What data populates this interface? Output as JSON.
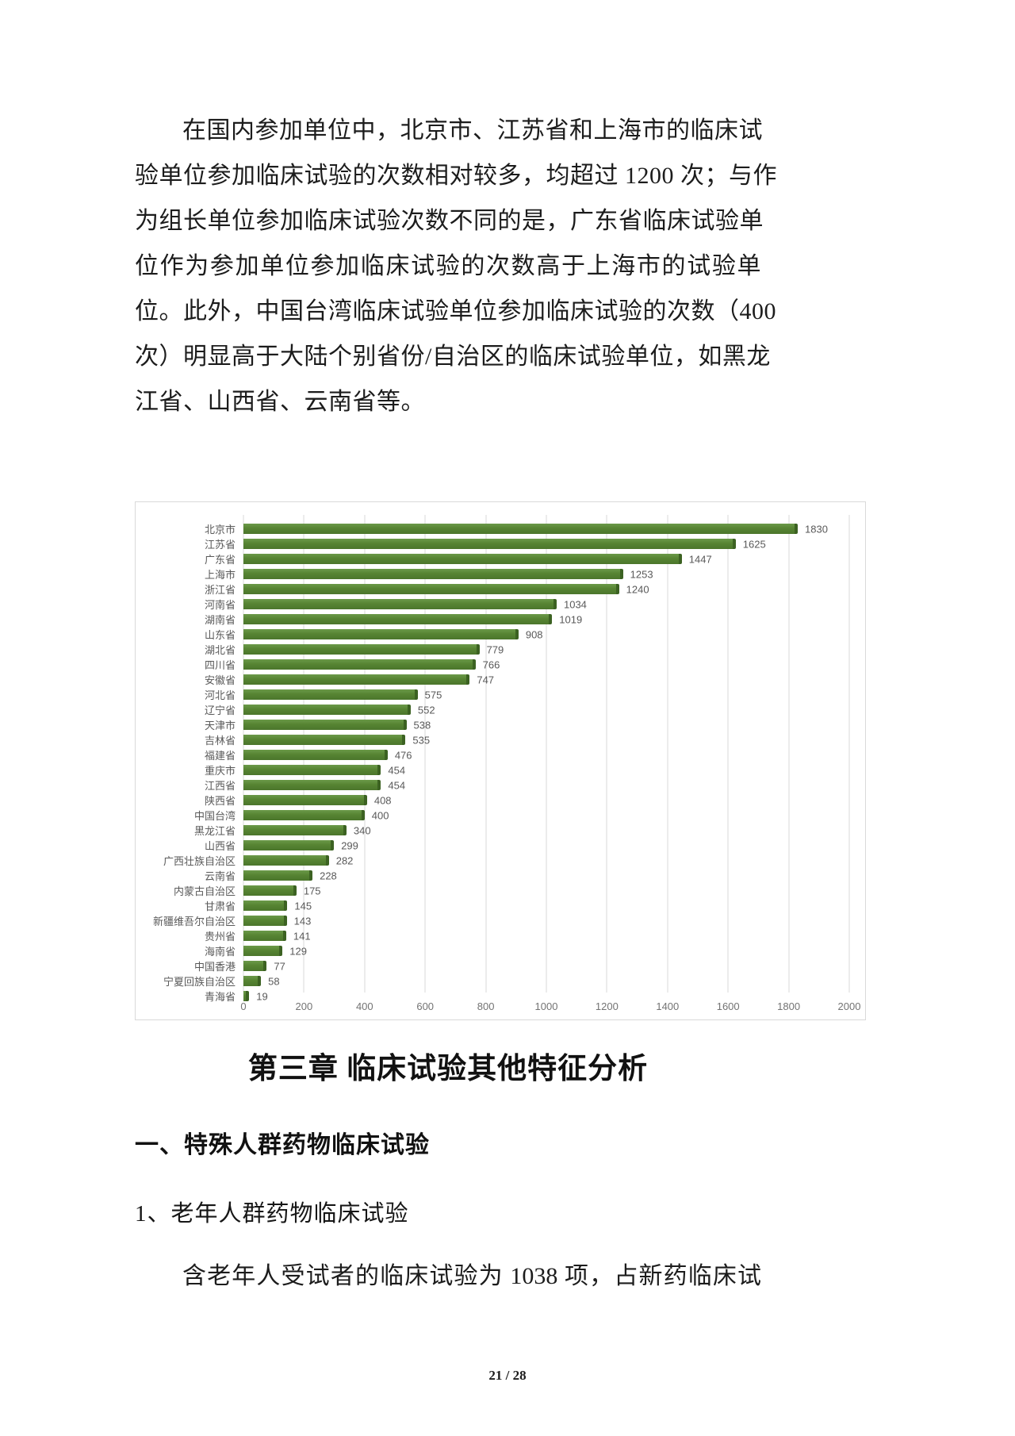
{
  "intro_paragraph": {
    "lines": [
      "在国内参加单位中，北京市、江苏省和上海市的临床试",
      "验单位参加临床试验的次数相对较多，均超过 1200 次；与作",
      "为组长单位参加临床试验次数不同的是，广东省临床试验单",
      "位作为参加单位参加临床试验的次数高于上海市的试验单",
      "位。此外，中国台湾临床试验单位参加临床试验的次数（400",
      "次）明显高于大陆个别省份/自治区的临床试验单位，如黑龙",
      "江省、山西省、云南省等。"
    ]
  },
  "chart_data": {
    "type": "bar",
    "orientation": "horizontal",
    "title": "",
    "xlabel": "",
    "ylabel": "",
    "xlim": [
      0,
      2000
    ],
    "x_ticks": [
      0,
      200,
      400,
      600,
      800,
      1000,
      1200,
      1400,
      1600,
      1800,
      2000
    ],
    "grid": true,
    "bar_color": "#578433",
    "bar_cap_color": "#3c6222",
    "gridline_color": "#d9d9d9",
    "label_color": "#595959",
    "categories": [
      "北京市",
      "江苏省",
      "广东省",
      "上海市",
      "浙江省",
      "河南省",
      "湖南省",
      "山东省",
      "湖北省",
      "四川省",
      "安徽省",
      "河北省",
      "辽宁省",
      "天津市",
      "吉林省",
      "福建省",
      "重庆市",
      "江西省",
      "陕西省",
      "中国台湾",
      "黑龙江省",
      "山西省",
      "广西壮族自治区",
      "云南省",
      "内蒙古自治区",
      "甘肃省",
      "新疆维吾尔自治区",
      "贵州省",
      "海南省",
      "中国香港",
      "宁夏回族自治区",
      "青海省"
    ],
    "values": [
      1830,
      1625,
      1447,
      1253,
      1240,
      1034,
      1019,
      908,
      779,
      766,
      747,
      575,
      552,
      538,
      535,
      476,
      454,
      454,
      408,
      400,
      340,
      299,
      282,
      228,
      175,
      145,
      143,
      141,
      129,
      77,
      58,
      19
    ]
  },
  "chapter_heading": "第三章 临床试验其他特征分析",
  "section_heading": "一、特殊人群药物临床试验",
  "subsection_heading": "1、老年人群药物临床试验",
  "body_paragraph": {
    "lines": [
      "含老年人受试者的临床试验为 1038 项，占新药临床试"
    ]
  },
  "footer": {
    "page_indicator": "21 / 28"
  }
}
